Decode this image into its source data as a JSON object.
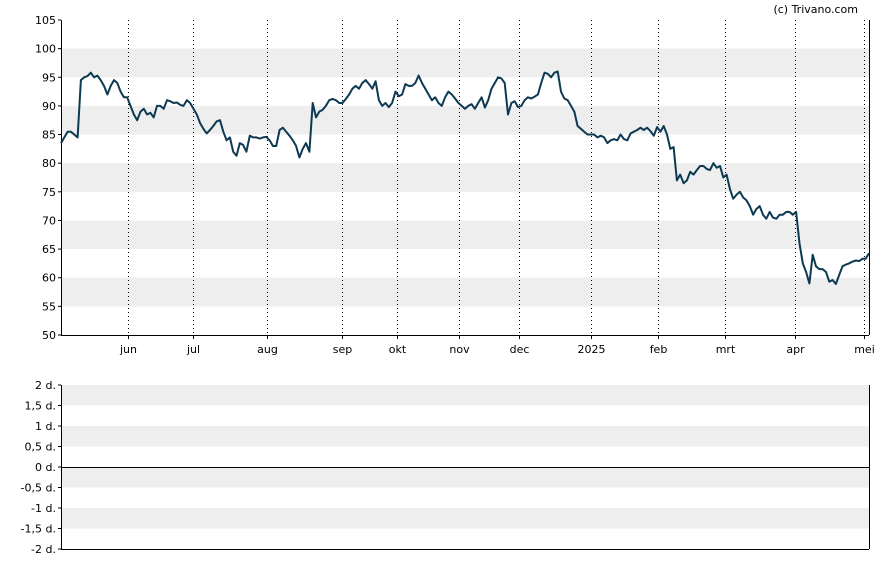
{
  "credit": "(c) Trivano.com",
  "colors": {
    "band": "#eeeeee",
    "line": "#0d3a52",
    "axis": "#000000",
    "grid_dotted": "#000000"
  },
  "chart_data": [
    {
      "type": "line",
      "title": "",
      "xlabel": "",
      "ylabel": "",
      "ylim": [
        50,
        105
      ],
      "yticks": [
        "105",
        "100",
        "95",
        "90",
        "85",
        "80",
        "75",
        "70",
        "65",
        "60",
        "55",
        "50"
      ],
      "xrange_day": [
        0,
        337
      ],
      "xticks": [
        {
          "label": "jun",
          "day": 28
        },
        {
          "label": "jul",
          "day": 55
        },
        {
          "label": "aug",
          "day": 86
        },
        {
          "label": "sep",
          "day": 117
        },
        {
          "label": "okt",
          "day": 140
        },
        {
          "label": "nov",
          "day": 166
        },
        {
          "label": "dec",
          "day": 191
        },
        {
          "label": "2025",
          "day": 221
        },
        {
          "label": "feb",
          "day": 249
        },
        {
          "label": "mrt",
          "day": 277
        },
        {
          "label": "apr",
          "day": 306
        },
        {
          "label": "mei",
          "day": 335
        }
      ],
      "grid": "dotted-vertical",
      "series": [
        {
          "values": [
            [
              0,
              83.5
            ],
            [
              2,
              85.5
            ],
            [
              3,
              85.5
            ],
            [
              4,
              85
            ],
            [
              5,
              84.5
            ],
            [
              6,
              94.5
            ],
            [
              7,
              95
            ],
            [
              8,
              95.2
            ],
            [
              9,
              95.8
            ],
            [
              10,
              95
            ],
            [
              11,
              95.3
            ],
            [
              12,
              94.5
            ],
            [
              13,
              93.5
            ],
            [
              14,
              92
            ],
            [
              15,
              93.5
            ],
            [
              16,
              94.5
            ],
            [
              17,
              94
            ],
            [
              18,
              92.5
            ],
            [
              19,
              91.5
            ],
            [
              20,
              91.5
            ],
            [
              21,
              90
            ],
            [
              22,
              88.5
            ],
            [
              23,
              87.5
            ],
            [
              24,
              89
            ],
            [
              25,
              89.5
            ],
            [
              26,
              88.5
            ],
            [
              27,
              88.8
            ],
            [
              28,
              88
            ],
            [
              29,
              90
            ],
            [
              30,
              90
            ],
            [
              31,
              89.5
            ],
            [
              32,
              91
            ],
            [
              33,
              90.8
            ],
            [
              34,
              90.5
            ],
            [
              35,
              90.6
            ],
            [
              36,
              90.2
            ],
            [
              37,
              90
            ],
            [
              38,
              91
            ],
            [
              39,
              90.5
            ],
            [
              40,
              89.5
            ],
            [
              41,
              88.5
            ],
            [
              42,
              87
            ],
            [
              43,
              86
            ],
            [
              44,
              85.2
            ],
            [
              45,
              85.8
            ],
            [
              46,
              86.5
            ],
            [
              47,
              87.3
            ],
            [
              48,
              87.5
            ],
            [
              49,
              85.5
            ],
            [
              50,
              84
            ],
            [
              51,
              84.5
            ],
            [
              52,
              82
            ],
            [
              53,
              81.3
            ],
            [
              54,
              83.5
            ],
            [
              55,
              83.2
            ],
            [
              56,
              82
            ],
            [
              57,
              84.8
            ],
            [
              58,
              84.5
            ],
            [
              59,
              84.5
            ],
            [
              60,
              84.3
            ],
            [
              61,
              84.5
            ],
            [
              62,
              84.6
            ],
            [
              63,
              84
            ],
            [
              64,
              83
            ],
            [
              65,
              83
            ],
            [
              66,
              85.8
            ],
            [
              67,
              86.2
            ],
            [
              68,
              85.5
            ],
            [
              69,
              84.8
            ],
            [
              70,
              84
            ],
            [
              71,
              83
            ],
            [
              72,
              81
            ],
            [
              73,
              82.5
            ],
            [
              74,
              83.5
            ],
            [
              75,
              82
            ],
            [
              76,
              90.5
            ],
            [
              77,
              88
            ],
            [
              78,
              89
            ],
            [
              79,
              89.3
            ],
            [
              80,
              90
            ],
            [
              81,
              91
            ],
            [
              82,
              91.2
            ],
            [
              83,
              91
            ],
            [
              84,
              90.5
            ],
            [
              85,
              90.5
            ],
            [
              86,
              91.2
            ],
            [
              87,
              92
            ],
            [
              88,
              93
            ],
            [
              89,
              93.5
            ],
            [
              90,
              93
            ],
            [
              91,
              94
            ],
            [
              92,
              94.5
            ],
            [
              93,
              93.8
            ],
            [
              94,
              93
            ],
            [
              95,
              94.3
            ],
            [
              96,
              91
            ],
            [
              97,
              90
            ],
            [
              98,
              90.5
            ],
            [
              99,
              89.8
            ],
            [
              100,
              90.5
            ],
            [
              101,
              92.5
            ],
            [
              102,
              91.7
            ],
            [
              103,
              92
            ],
            [
              104,
              93.8
            ],
            [
              105,
              93.5
            ],
            [
              106,
              93.5
            ],
            [
              107,
              94
            ],
            [
              108,
              95.3
            ],
            [
              109,
              94
            ],
            [
              110,
              93
            ],
            [
              111,
              92
            ],
            [
              112,
              91
            ],
            [
              113,
              91.5
            ],
            [
              114,
              90.5
            ],
            [
              115,
              90
            ],
            [
              116,
              91.5
            ],
            [
              117,
              92.5
            ],
            [
              118,
              92
            ],
            [
              119,
              91.3
            ],
            [
              120,
              90.5
            ],
            [
              121,
              90
            ],
            [
              122,
              89.5
            ],
            [
              123,
              90
            ],
            [
              124,
              90.3
            ],
            [
              125,
              89.5
            ],
            [
              126,
              90.5
            ],
            [
              127,
              91.5
            ],
            [
              128,
              89.7
            ],
            [
              129,
              91
            ],
            [
              130,
              93
            ],
            [
              131,
              94
            ],
            [
              132,
              95
            ],
            [
              133,
              94.8
            ],
            [
              134,
              94
            ],
            [
              135,
              88.5
            ],
            [
              136,
              90.5
            ],
            [
              137,
              90.8
            ],
            [
              138,
              89.8
            ],
            [
              139,
              90
            ],
            [
              140,
              91
            ],
            [
              141,
              91.5
            ],
            [
              142,
              91.3
            ],
            [
              143,
              91.6
            ],
            [
              144,
              92
            ],
            [
              145,
              94
            ],
            [
              146,
              95.8
            ],
            [
              147,
              95.6
            ],
            [
              148,
              95
            ],
            [
              149,
              95.8
            ],
            [
              150,
              96
            ],
            [
              151,
              92.5
            ],
            [
              152,
              91.3
            ],
            [
              153,
              91
            ],
            [
              154,
              90
            ],
            [
              155,
              89
            ],
            [
              156,
              86.5
            ],
            [
              157,
              86
            ],
            [
              158,
              85.5
            ],
            [
              159,
              85
            ],
            [
              160,
              85
            ],
            [
              161,
              85
            ],
            [
              162,
              84.5
            ],
            [
              163,
              84.8
            ],
            [
              164,
              84.5
            ],
            [
              165,
              83.5
            ],
            [
              166,
              84
            ],
            [
              167,
              84.2
            ],
            [
              168,
              84
            ],
            [
              169,
              85
            ],
            [
              170,
              84.2
            ],
            [
              171,
              84
            ],
            [
              172,
              85.2
            ],
            [
              173,
              85.5
            ],
            [
              174,
              85.8
            ],
            [
              175,
              86.2
            ],
            [
              176,
              85.8
            ],
            [
              177,
              86.2
            ],
            [
              178,
              85.6
            ],
            [
              179,
              84.8
            ],
            [
              180,
              86.3
            ],
            [
              181,
              85.5
            ],
            [
              182,
              86.5
            ],
            [
              183,
              85
            ],
            [
              184,
              82.5
            ],
            [
              185,
              82.8
            ],
            [
              186,
              77
            ],
            [
              187,
              78
            ],
            [
              188,
              76.5
            ],
            [
              189,
              77
            ],
            [
              190,
              78.5
            ],
            [
              191,
              78
            ],
            [
              192,
              78.8
            ],
            [
              193,
              79.5
            ],
            [
              194,
              79.5
            ],
            [
              195,
              79
            ],
            [
              196,
              78.8
            ],
            [
              197,
              80
            ],
            [
              198,
              79.2
            ],
            [
              199,
              79.5
            ],
            [
              200,
              77.5
            ],
            [
              201,
              78
            ],
            [
              202,
              75.5
            ],
            [
              203,
              73.8
            ],
            [
              204,
              74.5
            ],
            [
              205,
              75
            ],
            [
              206,
              74
            ],
            [
              207,
              73.5
            ],
            [
              208,
              72.5
            ],
            [
              209,
              71
            ],
            [
              210,
              72
            ],
            [
              211,
              72.5
            ],
            [
              212,
              71
            ],
            [
              213,
              70.3
            ],
            [
              214,
              71.5
            ],
            [
              215,
              70.5
            ],
            [
              216,
              70.3
            ],
            [
              217,
              71
            ],
            [
              218,
              71
            ],
            [
              219,
              71.5
            ],
            [
              220,
              71.5
            ],
            [
              221,
              71
            ],
            [
              222,
              71.5
            ],
            [
              223,
              66
            ],
            [
              224,
              62.5
            ],
            [
              225,
              61
            ],
            [
              226,
              59
            ],
            [
              227,
              64
            ],
            [
              228,
              62
            ],
            [
              229,
              61.5
            ],
            [
              230,
              61.5
            ],
            [
              231,
              61
            ],
            [
              232,
              59.3
            ],
            [
              233,
              59.6
            ],
            [
              234,
              58.9
            ],
            [
              235,
              60.5
            ],
            [
              236,
              62
            ],
            [
              237,
              62.3
            ],
            [
              238,
              62.5
            ],
            [
              239,
              62.8
            ],
            [
              240,
              63
            ],
            [
              241,
              62.9
            ],
            [
              242,
              63.3
            ],
            [
              243,
              63.3
            ],
            [
              244,
              64.3
            ]
          ]
        }
      ]
    },
    {
      "type": "line",
      "title": "",
      "ylim": [
        -2,
        2
      ],
      "yticks": [
        "2 d.",
        "1,5 d.",
        "1 d.",
        "0,5 d.",
        "0 d.",
        "-0,5 d.",
        "-1 d.",
        "-1,5 d.",
        "-2 d."
      ],
      "grid": "bands",
      "series": []
    }
  ]
}
